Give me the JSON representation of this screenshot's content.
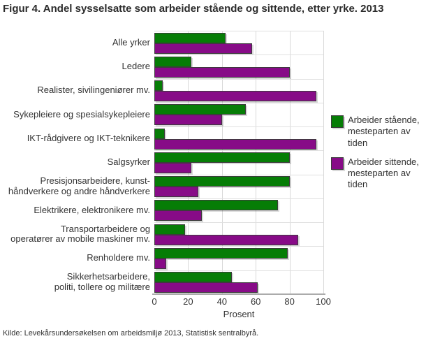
{
  "title": "Figur 4. Andel sysselsatte som arbeider stående og sittende, etter yrke. 2013",
  "source": "Kilde: Levekårsundersøkelsen om arbeidsmiljø 2013, Statistisk sentralbyrå.",
  "colors": {
    "standing": "#067d06",
    "sitting": "#870b87",
    "grid": "#d9d9d9",
    "axis": "#ababab",
    "text": "#333333"
  },
  "legend": {
    "items": [
      {
        "label": "Arbeider stående,\nmesteparten av\ntiden",
        "color": "#067d06"
      },
      {
        "label": "Arbeider sittende,\nmesteparten av\ntiden",
        "color": "#870b87"
      }
    ]
  },
  "chart_data": {
    "type": "bar",
    "orientation": "horizontal",
    "title": "Figur 4. Andel sysselsatte som arbeider stående og sittende, etter yrke. 2013",
    "xlabel": "Prosent",
    "ylabel": "",
    "xlim": [
      0,
      100
    ],
    "xticks": [
      0,
      20,
      40,
      60,
      80,
      100
    ],
    "grid": true,
    "legend_position": "right",
    "categories": [
      "Alle yrker",
      "Ledere",
      "Realister, sivilingeniører mv.",
      "Sykepleiere og spesialsykepleiere",
      "IKT-rådgivere og IKT-teknikere",
      "Salgsyrker",
      "Presisjonsarbeidere, kunst-\nhåndverkere og andre håndverkere",
      "Elektrikere, elektronikere mv.",
      "Transportarbeidere og\noperatører av mobile maskiner mv.",
      "Renholdere mv.",
      "Sikkerhetsarbeidere,\npoliti, tollere og militære"
    ],
    "series": [
      {
        "name": "Arbeider stående, mesteparten av tiden",
        "color": "#067d06",
        "values": [
          42,
          22,
          5,
          54,
          6,
          80,
          80,
          73,
          18,
          79,
          46
        ]
      },
      {
        "name": "Arbeider sittende, mesteparten av tiden",
        "color": "#870b87",
        "values": [
          58,
          80,
          96,
          40,
          96,
          22,
          26,
          28,
          85,
          7,
          61
        ]
      }
    ]
  }
}
